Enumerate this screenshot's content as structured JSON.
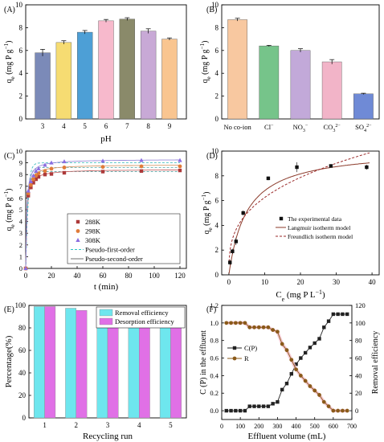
{
  "chart_data": [
    {
      "panel": "(A)",
      "type": "bar",
      "xlabel": "pH",
      "ylabel": "q_e (mg P g^-1)",
      "ylabel_parts": {
        "main": "q",
        "sub": "e",
        "unit": "(mg P g",
        "exp": "−1",
        "close": ")"
      },
      "ylim": [
        0,
        10
      ],
      "yticks": [
        0,
        2,
        4,
        6,
        8,
        10
      ],
      "categories": [
        "3",
        "4",
        "5",
        "6",
        "7",
        "8",
        "9"
      ],
      "values": [
        5.8,
        6.7,
        7.6,
        8.6,
        8.75,
        7.7,
        7.0
      ],
      "errors": [
        0.3,
        0.15,
        0.15,
        0.12,
        0.12,
        0.2,
        0.1
      ],
      "colors": [
        "#7b8ab8",
        "#f6dc72",
        "#4d9fd6",
        "#f7b9cc",
        "#8a8a6a",
        "#c8a9d6",
        "#f9c590"
      ]
    },
    {
      "panel": "(B)",
      "type": "bar",
      "xlabel": "",
      "ylabel": "q_e (mg P g^-1)",
      "ylabel_parts": {
        "main": "q",
        "sub": "e",
        "unit": "(mg P g",
        "exp": "−1",
        "close": ")"
      },
      "ylim": [
        0,
        10
      ],
      "yticks": [
        0,
        2,
        4,
        6,
        8,
        10
      ],
      "categories": [
        "No co-ion",
        "Cl⁻",
        "NO₃⁻",
        "CO₃²⁻",
        "SO₄²⁻"
      ],
      "values": [
        8.7,
        6.4,
        6.0,
        5.0,
        2.2
      ],
      "errors": [
        0.12,
        0.05,
        0.15,
        0.2,
        0.05
      ],
      "colors": [
        "#f8c8a0",
        "#76c48a",
        "#c2a9d9",
        "#f2b4c8",
        "#6f8ad6"
      ]
    },
    {
      "panel": "(C)",
      "type": "scatter",
      "xlabel": "t (min)",
      "ylabel": "q_e (mg P g^-1)",
      "ylabel_parts": {
        "main": "q",
        "sub": "e",
        "unit": "(mg P g",
        "exp": "−1",
        "close": ")"
      },
      "xlim": [
        0,
        125
      ],
      "ylim": [
        0,
        10
      ],
      "xticks": [
        0,
        20,
        40,
        60,
        80,
        100,
        120
      ],
      "yticks": [
        0,
        1,
        2,
        3,
        4,
        5,
        6,
        7,
        8,
        9,
        10
      ],
      "series": [
        {
          "name": "288K",
          "marker": "square",
          "color": "#ad3a3a",
          "x": [
            0,
            2,
            4,
            6,
            8,
            10,
            15,
            20,
            30,
            60,
            90,
            120
          ],
          "y": [
            0,
            6.2,
            6.9,
            7.3,
            7.6,
            7.8,
            8.0,
            8.05,
            8.15,
            8.25,
            8.3,
            8.35
          ]
        },
        {
          "name": "298K",
          "marker": "circle",
          "color": "#e07b39",
          "x": [
            0,
            2,
            4,
            6,
            8,
            10,
            15,
            20,
            30,
            60,
            90,
            120
          ],
          "y": [
            0,
            6.4,
            7.1,
            7.6,
            7.9,
            8.1,
            8.3,
            8.5,
            8.6,
            8.65,
            8.7,
            8.7
          ]
        },
        {
          "name": "308K",
          "marker": "triangle",
          "color": "#8a6de0",
          "x": [
            0,
            2,
            4,
            6,
            8,
            10,
            15,
            20,
            30,
            60,
            90,
            120
          ],
          "y": [
            0,
            6.6,
            7.4,
            7.9,
            8.3,
            8.5,
            8.8,
            9.0,
            9.1,
            9.15,
            9.2,
            9.2
          ]
        }
      ],
      "fits": [
        {
          "name": "Pseudo-first-order",
          "style": "dashed",
          "color": "#2ec4c4",
          "qe": [
            8.25,
            8.6,
            9.0
          ],
          "k": 0.6
        },
        {
          "name": "Pseudo-second-order",
          "style": "solid",
          "color": "#707070",
          "qe": [
            8.45,
            8.85,
            9.3
          ],
          "k": 0.15
        }
      ],
      "fit_colors": [
        [
          "#c86a6a",
          "#5aa0a0"
        ],
        [
          "#d69a6a",
          "#6ab0b0"
        ],
        [
          "#9a8ad8",
          "#4ac0c0"
        ]
      ],
      "legend": [
        "288K",
        "298K",
        "308K",
        "Pseudo-first-order",
        "Pseudo-second-order"
      ],
      "legend_position": "lower-right"
    },
    {
      "panel": "(D)",
      "type": "scatter",
      "xlabel": "C_e (mg P L^-1)",
      "xlabel_parts": {
        "main": "C",
        "sub": "e",
        "unit": "(mg P L",
        "exp": "−1",
        "close": ")"
      },
      "ylabel": "q_e (mg P g^-1)",
      "ylabel_parts": {
        "main": "q",
        "sub": "e",
        "unit": "(mg P g",
        "exp": "−1",
        "close": ")"
      },
      "xlim": [
        -2,
        42
      ],
      "ylim": [
        0,
        10
      ],
      "xticks": [
        0,
        10,
        20,
        30,
        40
      ],
      "yticks": [
        0,
        2,
        4,
        6,
        8,
        10
      ],
      "series": [
        {
          "name": "The experimental data",
          "marker": "square",
          "color": "#111111",
          "x": [
            0.3,
            1.0,
            2.0,
            4.0,
            11.0,
            19.0,
            28.5,
            38.5
          ],
          "y": [
            1.0,
            1.9,
            2.7,
            5.0,
            7.8,
            8.7,
            8.8,
            8.7
          ],
          "err": [
            0.2,
            0.2,
            0.3,
            0.2,
            0.15,
            0.4,
            0.1,
            0.2
          ]
        }
      ],
      "fits": [
        {
          "name": "Langmuir isotherm model",
          "style": "solid",
          "color": "#8b3a2a",
          "qmax": 10.2,
          "kl": 0.2
        },
        {
          "name": "Freundlich isotherm model",
          "style": "dashed",
          "color": "#9b2a2a",
          "kf": 2.9,
          "n": 3.0
        }
      ],
      "legend": [
        "The experimental data",
        "Langmuir isotherm model",
        "Freundlich isotherm model"
      ],
      "legend_position": "lower-right"
    },
    {
      "panel": "(E)",
      "type": "bar",
      "xlabel": "Recycling run",
      "ylabel": "Percentage(%)",
      "ylim": [
        0,
        100
      ],
      "yticks": [
        0,
        20,
        40,
        60,
        80,
        100
      ],
      "categories": [
        "1",
        "2",
        "3",
        "4",
        "5"
      ],
      "series": [
        {
          "name": "Removal efficiency",
          "color": "#6ee6ee",
          "values": [
            99,
            97.5,
            97,
            94,
            88
          ]
        },
        {
          "name": "Desorption efficiency",
          "color": "#e070e6",
          "values": [
            99,
            95.5,
            93,
            93,
            92
          ]
        }
      ],
      "legend": [
        "Removal efficiency",
        "Desorption efficiency"
      ],
      "legend_position": "top-right"
    },
    {
      "panel": "(F)",
      "type": "line",
      "xlabel": "Effluent volume (mL)",
      "ylabel": "C (P) in the effluent",
      "y2label": "Removal efficiency",
      "xlim": [
        0,
        700
      ],
      "ylim": [
        -0.1,
        1.2
      ],
      "y2lim": [
        -10,
        120
      ],
      "xticks": [
        0,
        100,
        200,
        300,
        400,
        500,
        600,
        700
      ],
      "yticks": [
        "0.0",
        "0.2",
        "0.4",
        "0.6",
        "0.8",
        "1.0",
        "1.2"
      ],
      "y2ticks": [
        0,
        20,
        40,
        60,
        80,
        100,
        120
      ],
      "series": [
        {
          "name": "C(P)",
          "axis": "left",
          "marker": "square",
          "color": "#222222",
          "x": [
            25,
            50,
            75,
            100,
            125,
            150,
            175,
            200,
            225,
            250,
            275,
            300,
            325,
            350,
            375,
            400,
            425,
            450,
            475,
            500,
            525,
            550,
            575,
            600,
            625,
            650,
            675
          ],
          "y": [
            0,
            0,
            0,
            0,
            0,
            0.05,
            0.05,
            0.05,
            0.05,
            0.05,
            0.08,
            0.1,
            0.24,
            0.31,
            0.42,
            0.53,
            0.6,
            0.66,
            0.72,
            0.77,
            0.82,
            0.95,
            1.02,
            1.1,
            1.1,
            1.1,
            1.1
          ]
        },
        {
          "name": "R",
          "axis": "right",
          "marker": "circle",
          "color": "#8b5a1a",
          "x": [
            25,
            50,
            75,
            100,
            125,
            150,
            175,
            200,
            225,
            250,
            275,
            300,
            325,
            350,
            375,
            400,
            425,
            450,
            475,
            500,
            525,
            550,
            575,
            600,
            625,
            650,
            675
          ],
          "y": [
            100,
            100,
            100,
            100,
            100,
            95,
            95,
            95,
            95,
            95,
            92,
            90,
            76,
            69,
            58,
            47,
            40,
            34,
            28,
            23,
            18,
            10,
            5,
            0,
            0,
            0,
            0
          ]
        }
      ],
      "legend": [
        "C(P)",
        "R"
      ],
      "legend_position": "left"
    }
  ],
  "tick_labels": {
    "co_ion_b": [
      {
        "base": "No co-ion",
        "sub": "",
        "sup": ""
      },
      {
        "base": "Cl",
        "sub": "",
        "sup": "−"
      },
      {
        "base": "NO",
        "sub": "3",
        "sup": "−"
      },
      {
        "base": "CO",
        "sub": "3",
        "sup": "2−"
      },
      {
        "base": "SO",
        "sub": "4",
        "sup": "2−"
      }
    ]
  }
}
